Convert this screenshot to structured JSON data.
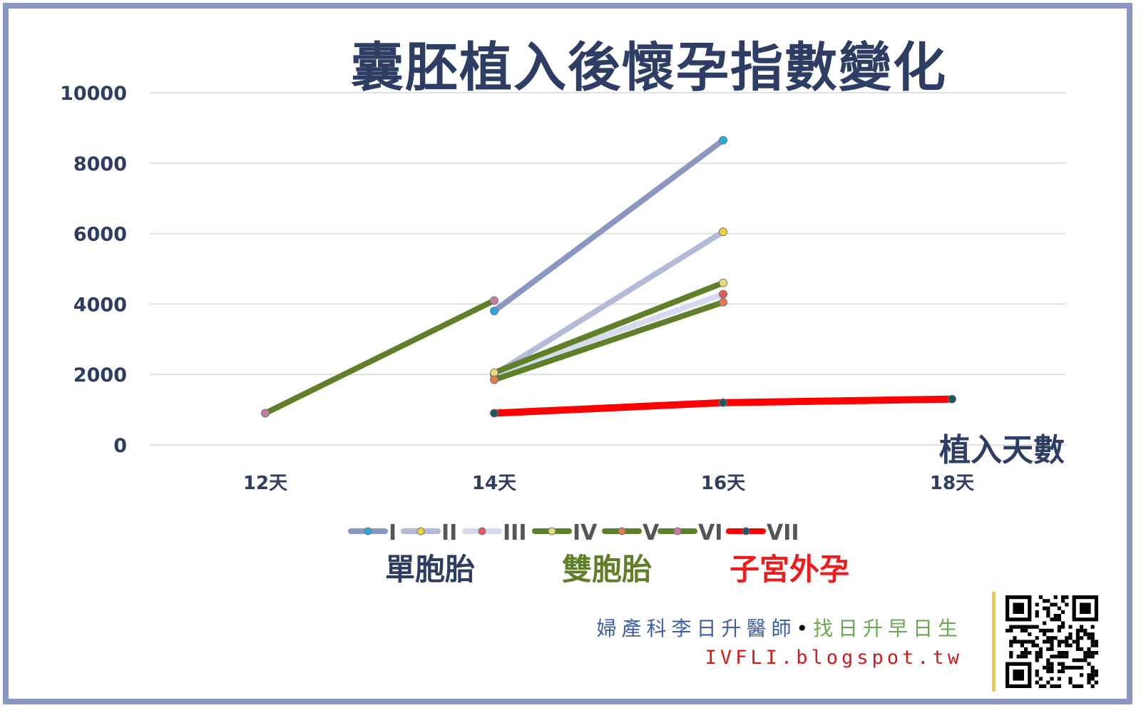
{
  "chart_data": {
    "type": "line",
    "title": "囊胚植入後懷孕指數變化",
    "xlabel": "植入天數",
    "ylabel": "",
    "categories": [
      "12天",
      "14天",
      "16天",
      "18天"
    ],
    "ylim": [
      0,
      10000
    ],
    "yticks": [
      0,
      2000,
      4000,
      6000,
      8000,
      10000
    ],
    "grid": true,
    "legend_position": "bottom",
    "series": [
      {
        "name": "I",
        "line_color": "#8b97c3",
        "marker_color": "#29a9e0",
        "values": [
          null,
          3800,
          8650,
          null
        ]
      },
      {
        "name": "II",
        "line_color": "#b3bbd9",
        "marker_color": "#f0d23a",
        "values": [
          null,
          2000,
          6050,
          null
        ]
      },
      {
        "name": "III",
        "line_color": "#d6dbeb",
        "marker_color": "#e05a5a",
        "values": [
          null,
          2000,
          4280,
          null
        ]
      },
      {
        "name": "IV",
        "line_color": "#5f7f28",
        "marker_color": "#e3dc7a",
        "values": [
          null,
          2050,
          4600,
          null
        ]
      },
      {
        "name": "V",
        "line_color": "#5f7f28",
        "marker_color": "#e07a50",
        "values": [
          null,
          1850,
          4050,
          null
        ]
      },
      {
        "name": "VI",
        "line_color": "#5f7f28",
        "marker_color": "#c97b9f",
        "values": [
          900,
          4100,
          null,
          null
        ]
      },
      {
        "name": "VII",
        "line_color": "#ff0000",
        "marker_color": "#1f5560",
        "values": [
          null,
          900,
          1200,
          1300
        ]
      }
    ],
    "groups": [
      {
        "label": "單胞胎",
        "color": "#2d3d63"
      },
      {
        "label": "雙胞胎",
        "color": "#5f7f28"
      },
      {
        "label": "子宮外孕",
        "color": "#ee1c1c"
      }
    ]
  },
  "credit": {
    "name": "婦產科李日升醫師",
    "separator": "•",
    "slogan": "找日升早日生",
    "url": "IVFLI.blogspot.tw",
    "name_color": "#3d5fa6",
    "slogan_color": "#6aa84f"
  },
  "qr_icon": "qr-code-icon"
}
